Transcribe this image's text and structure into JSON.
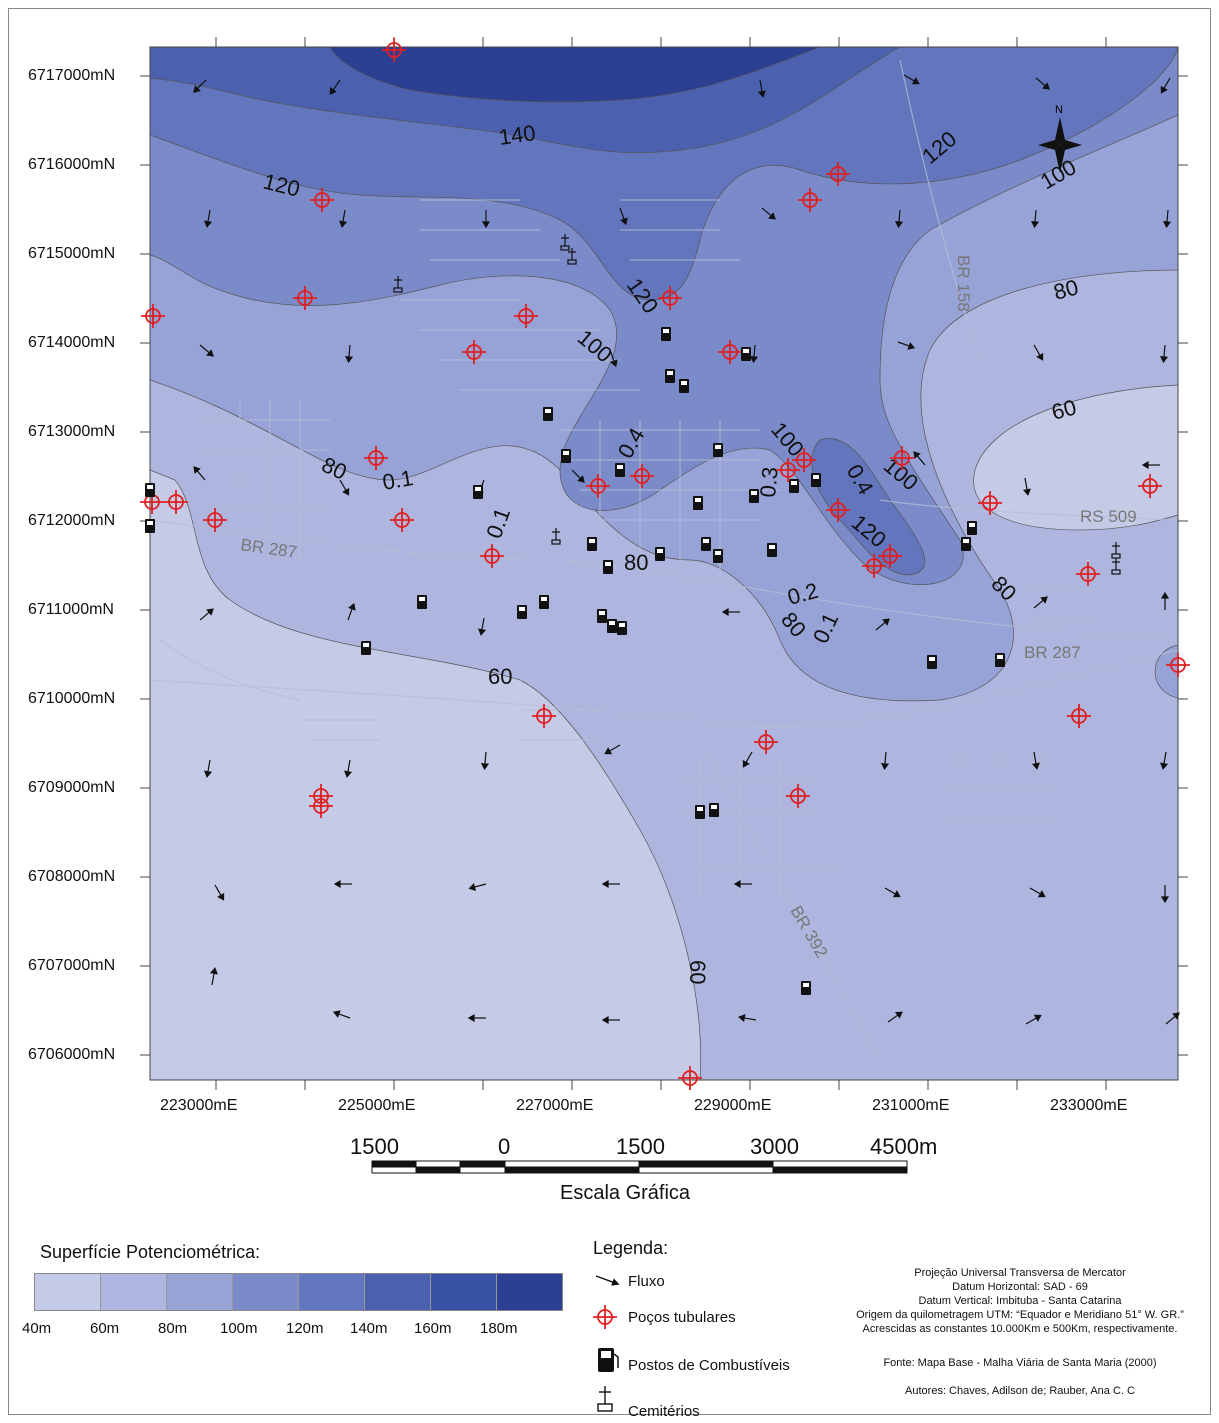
{
  "map": {
    "y_ticks": [
      "6717000mN",
      "6716000mN",
      "6715000mN",
      "6714000mN",
      "6713000mN",
      "6712000mN",
      "6711000mN",
      "6710000mN",
      "6709000mN",
      "6708000mN",
      "6707000mN",
      "6706000mN"
    ],
    "x_ticks": [
      "223000mE",
      "225000mE",
      "227000mE",
      "229000mE",
      "231000mE",
      "233000mE"
    ],
    "contour_labels": [
      "140",
      "120",
      "120",
      "120",
      "100",
      "100",
      "100",
      "80",
      "80",
      "80",
      "80",
      "60",
      "60",
      "60",
      "120",
      "100",
      "80",
      "0.4",
      "0.1",
      "0.1",
      "0.3",
      "0.4",
      "0.2",
      "0.1",
      "100",
      "120",
      "80"
    ],
    "road_labels": [
      "BR 158",
      "RS 509",
      "BR 287",
      "BR 287",
      "BR 392"
    ],
    "north_label": "N"
  },
  "scale": {
    "numbers": [
      "1500",
      "0",
      "1500",
      "3000",
      "4500m"
    ],
    "title": "Escala Gráfica"
  },
  "potentiometric_legend": {
    "title": "Superfície Potenciométrica:",
    "colors": [
      "#c5cae6",
      "#aeb6df",
      "#97a3d6",
      "#7b8bc9",
      "#6275bd",
      "#4b61b0",
      "#3a52a5",
      "#2b3f93"
    ],
    "ticks": [
      "40m",
      "60m",
      "80m",
      "100m",
      "120m",
      "140m",
      "160m",
      "180m"
    ]
  },
  "legend": {
    "title": "Legenda:",
    "flow": "Fluxo",
    "wells": "Poços tubulares",
    "fuel": "Postos de Combustíveis",
    "cemetery": "Cemitérios"
  },
  "info": {
    "line1": "Projeção Universal Transversa de Mercator",
    "line2": "Datum Horizontal: SAD - 69",
    "line3": "Datum Vertical: Imbituba - Santa Catarina",
    "line4": "Origem da quilometragem UTM: “Equador e Meridiano 51° W. GR.”",
    "line5": "Acrescidas as constantes 10.000Km e 500Km, respectivamente.",
    "source": "Fonte: Mapa Base - Malha Viária de Santa Maria (2000)",
    "authors": "Autores: Chaves, Adilson de; Rauber, Ana C. C"
  }
}
